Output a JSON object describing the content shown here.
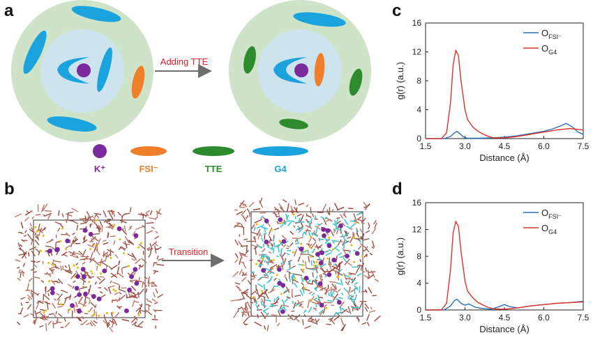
{
  "panels": {
    "a": "a",
    "b": "b",
    "c": "c",
    "d": "d"
  },
  "schematic": {
    "arrow_label_a": "Adding TTE",
    "arrow_label_b": "Transition",
    "legend": [
      {
        "label": "K⁺",
        "color": "#7b2a9e"
      },
      {
        "label": "FSI⁻",
        "color": "#f07f2a"
      },
      {
        "label": "TTE",
        "color": "#2d8a2d"
      },
      {
        "label": "G4",
        "color": "#1aa3dc"
      }
    ]
  },
  "colors": {
    "outer_shell": "#cfe3c8",
    "inner_shell": "#cde4ee",
    "arrow": "#6e6e6e",
    "arrow_text": "#e0202a",
    "series_fsi": "#2e6db4",
    "series_g4": "#d9342b"
  },
  "chart_data": [
    {
      "panel": "c",
      "type": "line",
      "xlabel": "Distance (Å)",
      "ylabel": "g(r) (a.u.)",
      "xlim": [
        1.5,
        7.5
      ],
      "ylim": [
        0,
        16
      ],
      "xticks": [
        "1.5",
        "3.0",
        "4.5",
        "6.0",
        "7.5"
      ],
      "yticks": [
        "0",
        "4",
        "8",
        "12",
        "16"
      ],
      "legend_position": "top-right",
      "series": [
        {
          "name": "O",
          "sub": "FSI⁻",
          "color": "#2e6db4",
          "x": [
            1.5,
            2.2,
            2.45,
            2.6,
            2.7,
            2.8,
            2.95,
            3.1,
            3.5,
            4.0,
            4.5,
            5.0,
            5.5,
            6.0,
            6.3,
            6.6,
            6.85,
            7.1,
            7.3,
            7.5
          ],
          "y": [
            0,
            0,
            0.3,
            0.8,
            1.0,
            0.7,
            0.2,
            0.05,
            0.05,
            0.1,
            0.2,
            0.4,
            0.7,
            1.0,
            1.3,
            1.7,
            2.1,
            1.6,
            0.9,
            0.6
          ]
        },
        {
          "name": "O",
          "sub": "G4",
          "color": "#d9342b",
          "x": [
            1.5,
            2.1,
            2.3,
            2.45,
            2.55,
            2.65,
            2.75,
            2.85,
            3.0,
            3.1,
            3.3,
            3.5,
            3.7,
            3.9,
            4.1,
            4.5,
            5.0,
            5.5,
            6.0,
            6.5,
            7.0,
            7.5
          ],
          "y": [
            0,
            0,
            0.8,
            5.0,
            10.2,
            12.2,
            11.5,
            8.0,
            4.0,
            2.6,
            1.6,
            1.0,
            0.6,
            0.3,
            0.1,
            0.1,
            0.3,
            0.6,
            0.9,
            1.2,
            1.4,
            1.2
          ]
        }
      ]
    },
    {
      "panel": "d",
      "type": "line",
      "xlabel": "Distance (Å)",
      "ylabel": "g(r) (a.u.)",
      "xlim": [
        1.5,
        7.5
      ],
      "ylim": [
        0,
        16
      ],
      "xticks": [
        "1.5",
        "3.0",
        "4.5",
        "6.0",
        "7.5"
      ],
      "yticks": [
        "0",
        "4",
        "8",
        "12",
        "16"
      ],
      "legend_position": "top-right",
      "series": [
        {
          "name": "O",
          "sub": "FSI⁻",
          "color": "#2e6db4",
          "x": [
            1.5,
            2.2,
            2.45,
            2.6,
            2.7,
            2.85,
            3.0,
            3.15,
            3.4,
            3.7,
            4.0,
            4.3,
            4.5,
            4.7,
            5.0,
            5.5,
            6.0,
            6.5,
            7.0,
            7.5
          ],
          "y": [
            0,
            0,
            0.6,
            1.4,
            1.6,
            1.0,
            0.7,
            0.9,
            0.4,
            0.2,
            0.1,
            0.5,
            0.8,
            0.5,
            0.3,
            0.6,
            0.8,
            1.0,
            1.1,
            1.3
          ]
        },
        {
          "name": "O",
          "sub": "G4",
          "color": "#d9342b",
          "x": [
            1.5,
            2.1,
            2.3,
            2.45,
            2.55,
            2.65,
            2.75,
            2.85,
            3.0,
            3.1,
            3.3,
            3.5,
            3.7,
            3.9,
            4.1,
            4.5,
            5.0,
            5.5,
            6.0,
            6.5,
            7.0,
            7.5
          ],
          "y": [
            0,
            0,
            1.0,
            6.0,
            11.5,
            13.2,
            12.5,
            8.8,
            4.3,
            2.8,
            1.8,
            1.1,
            0.7,
            0.35,
            0.15,
            0.1,
            0.3,
            0.6,
            0.8,
            1.0,
            1.1,
            1.2
          ]
        }
      ]
    }
  ]
}
